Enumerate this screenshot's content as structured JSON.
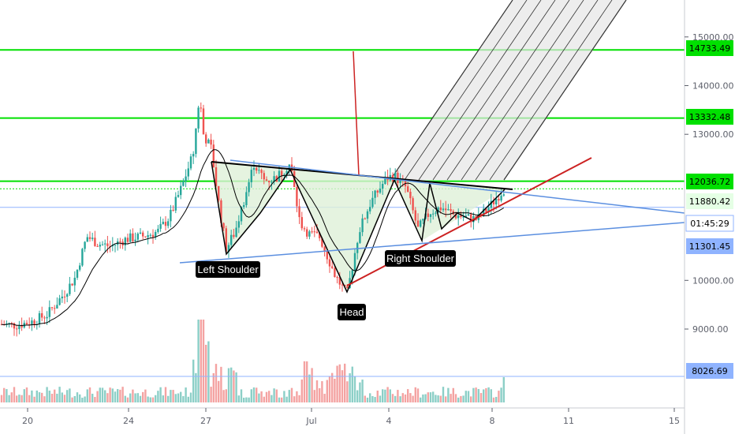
{
  "chart_data": {
    "type": "candlestick",
    "title": "",
    "xlabel": "",
    "ylabel": "",
    "ylim": [
      8400,
      15600
    ],
    "x_tick_labels": [
      "20",
      "24",
      "27",
      "Jul",
      "4",
      "8",
      "11",
      "15"
    ],
    "y_tick_labels": [
      "15000.00",
      "14000.00",
      "13000.00",
      "10000.00",
      "9000.00"
    ],
    "grid": false,
    "price_badges": [
      {
        "label": "14733.49",
        "value": 14733.49,
        "color": "#00e000"
      },
      {
        "label": "13332.48",
        "value": 13332.48,
        "color": "#00e000"
      },
      {
        "label": "12036.72",
        "value": 12036.72,
        "color": "#00e000"
      },
      {
        "label": "11880.42",
        "value": 11880.42,
        "color": "#e5ffe5"
      },
      {
        "label": "01:45:29",
        "value": 11500,
        "color": "#ffffff"
      },
      {
        "label": "11301.45",
        "value": 11301.45,
        "color": "#8fb3ff"
      },
      {
        "label": "8026.69",
        "value": 8026.69,
        "color": "#8fb3ff"
      }
    ],
    "horizontal_levels": [
      {
        "value": 14733.49,
        "color": "#00e000"
      },
      {
        "value": 13332.48,
        "color": "#00e000"
      },
      {
        "value": 12036.72,
        "color": "#00e000"
      },
      {
        "value": 11880.42,
        "color": "#00e000",
        "dotted": true
      },
      {
        "value": 11500,
        "color": "#8fb3ff"
      },
      {
        "value": 8026.69,
        "color": "#8fb3ff"
      }
    ],
    "annotations": [
      {
        "text": "Left Shoulder"
      },
      {
        "text": "Head"
      },
      {
        "text": "Right Shoulder"
      }
    ],
    "series": [
      {
        "kind": "candles",
        "up_color": "#26a69a",
        "down_color": "#ef5350"
      },
      {
        "kind": "moving-average",
        "color": "#000000"
      },
      {
        "kind": "volume",
        "up_color": "#8ccfc7",
        "down_color": "#f4a3a2"
      }
    ],
    "colors": {
      "pattern_fill": "#dff0d8",
      "pattern_stroke": "#000000",
      "trend_red": "#cc2222",
      "trend_blue": "#5b8fe0",
      "channel_stroke": "#333333",
      "channel_fill": "#e6e6e6",
      "axis": "#5d606b"
    }
  }
}
